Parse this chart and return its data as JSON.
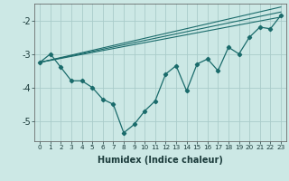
{
  "xlabel": "Humidex (Indice chaleur)",
  "background_color": "#cce8e5",
  "plot_bg_color": "#cce8e5",
  "grid_color": "#aaccca",
  "line_color": "#1a6b6b",
  "xlim": [
    -0.5,
    23.5
  ],
  "ylim": [
    -5.6,
    -1.5
  ],
  "yticks": [
    -5,
    -4,
    -3,
    -2
  ],
  "x": [
    0,
    1,
    2,
    3,
    4,
    5,
    6,
    7,
    8,
    9,
    10,
    11,
    12,
    13,
    14,
    15,
    16,
    17,
    18,
    19,
    20,
    21,
    22,
    23
  ],
  "y_main": [
    -3.25,
    -3.0,
    -3.4,
    -3.8,
    -3.8,
    -4.0,
    -4.35,
    -4.5,
    -5.35,
    -5.1,
    -4.7,
    -4.4,
    -3.6,
    -3.35,
    -4.1,
    -3.3,
    -3.15,
    -3.5,
    -2.8,
    -3.0,
    -2.5,
    -2.2,
    -2.25,
    -1.85
  ],
  "reg_lines": [
    {
      "x0": 0,
      "y0": -3.25,
      "x1": 23,
      "y1": -1.6
    },
    {
      "x0": 0,
      "y0": -3.25,
      "x1": 23,
      "y1": -1.75
    },
    {
      "x0": 0,
      "y0": -3.25,
      "x1": 23,
      "y1": -1.9
    }
  ]
}
